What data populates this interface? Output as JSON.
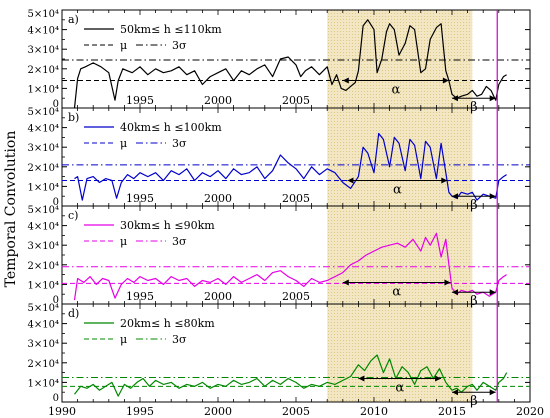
{
  "figure": {
    "ylabel": "Temporal Convolution",
    "x_ticks": [
      "1990",
      "1995",
      "2000",
      "2005",
      "2010",
      "2015",
      "2020"
    ],
    "y_ticks": [
      "0",
      "1×10⁴",
      "2×10⁴",
      "3×10⁴",
      "4×10⁴",
      "5×10⁴"
    ],
    "shaded_region": {
      "x_start": 2007.0,
      "x_end": 2016.3,
      "color": "#f3e7c3"
    },
    "vertical_line": {
      "x": 2017.9,
      "color": "#cc00cc"
    }
  },
  "chart_data": [
    {
      "type": "line",
      "panel_label": "a)",
      "legend": [
        {
          "label": "50km≤ h ≤110km",
          "style": "solid"
        },
        {
          "label": "μ",
          "style": "dashed"
        },
        {
          "label": "3σ",
          "style": "dashdot"
        }
      ],
      "color": "#000000",
      "xlim": [
        1990,
        2020
      ],
      "ylim": [
        0,
        50000
      ],
      "mu": 14000,
      "three_sigma": 24500,
      "series": [
        {
          "x": [
            1990.8,
            1991.0,
            1991.2,
            1991.5,
            1992.0,
            1992.5,
            1993.0,
            1993.4,
            1993.6,
            1993.9,
            1994.2,
            1994.5,
            1995.0,
            1995.5,
            1996.0,
            1996.5,
            1997.0,
            1997.5,
            1998.0,
            1998.5,
            1999.0,
            1999.5,
            2000.0,
            2000.5,
            2001.0,
            2001.5,
            2002.0,
            2002.5,
            2003.0,
            2003.5,
            2004.0,
            2004.5,
            2005.0,
            2005.3,
            2005.6,
            2006.0,
            2006.5,
            2007.0,
            2007.3,
            2007.6,
            2007.9,
            2008.2,
            2008.5,
            2008.8,
            2009.0,
            2009.3,
            2009.6,
            2010.0,
            2010.2,
            2010.5,
            2010.8,
            2011.0,
            2011.3,
            2011.6,
            2012.0,
            2012.3,
            2012.6,
            2013.0,
            2013.3,
            2013.6,
            2014.0,
            2014.3,
            2014.6,
            2014.8,
            2015.0,
            2015.3,
            2015.6,
            2016.0,
            2016.3,
            2016.6,
            2016.9,
            2017.2,
            2017.5,
            2017.8,
            2018.0,
            2018.3,
            2018.5
          ],
          "y": [
            0,
            15000,
            20000,
            21000,
            23000,
            21000,
            18000,
            4000,
            14000,
            20000,
            19000,
            18000,
            21000,
            17000,
            20000,
            18000,
            19000,
            21000,
            17000,
            19000,
            12000,
            16000,
            18000,
            20000,
            14000,
            19000,
            17000,
            20000,
            22000,
            16000,
            25000,
            26000,
            22000,
            16000,
            19000,
            21000,
            17000,
            21000,
            12000,
            17000,
            10000,
            9000,
            11000,
            13000,
            19000,
            42000,
            45000,
            40000,
            18000,
            25000,
            39000,
            43000,
            40000,
            27000,
            33000,
            42000,
            40000,
            18000,
            20000,
            35000,
            41000,
            43000,
            19000,
            14000,
            7000,
            5000,
            6000,
            7000,
            9000,
            6000,
            7000,
            11000,
            9000,
            4000,
            12000,
            16000,
            17000
          ]
        }
      ],
      "annotations": [
        {
          "label": "α",
          "x_start": 2008.0,
          "x_end": 2014.8,
          "y": 14000
        },
        {
          "label": "β",
          "x_start": 2015.0,
          "x_end": 2017.8,
          "y": 5000
        }
      ]
    },
    {
      "type": "line",
      "panel_label": "b)",
      "legend": [
        {
          "label": "40km≤ h ≤100km",
          "style": "solid"
        },
        {
          "label": "μ",
          "style": "dashed"
        },
        {
          "label": "3σ",
          "style": "dashdot"
        }
      ],
      "color": "#0000cc",
      "xlim": [
        1990,
        2020
      ],
      "ylim": [
        0,
        50000
      ],
      "mu": 13000,
      "three_sigma": 21000,
      "series": [
        {
          "x": [
            1990.8,
            1991.0,
            1991.3,
            1991.6,
            1992.0,
            1992.4,
            1992.8,
            1993.2,
            1993.5,
            1993.8,
            1994.2,
            1994.6,
            1995.0,
            1995.5,
            1996.0,
            1996.5,
            1997.0,
            1997.5,
            1998.0,
            1998.5,
            1999.0,
            1999.5,
            2000.0,
            2000.5,
            2001.0,
            2001.5,
            2002.0,
            2002.5,
            2003.0,
            2003.5,
            2004.0,
            2004.5,
            2005.0,
            2005.5,
            2006.0,
            2006.5,
            2007.0,
            2007.5,
            2008.0,
            2008.5,
            2009.0,
            2009.3,
            2009.6,
            2010.0,
            2010.3,
            2010.6,
            2011.0,
            2011.3,
            2011.6,
            2012.0,
            2012.3,
            2012.6,
            2013.0,
            2013.3,
            2013.6,
            2014.0,
            2014.3,
            2014.6,
            2014.8,
            2015.0,
            2015.3,
            2015.6,
            2016.0,
            2016.3,
            2016.6,
            2017.0,
            2017.4,
            2017.8,
            2018.0,
            2018.3,
            2018.5
          ],
          "y": [
            14000,
            15000,
            3000,
            14000,
            15000,
            12000,
            14000,
            13000,
            4000,
            12000,
            16000,
            14000,
            17000,
            15000,
            17000,
            13000,
            18000,
            16000,
            19000,
            13000,
            17000,
            15000,
            18000,
            14000,
            19000,
            16000,
            17000,
            20000,
            14000,
            18000,
            26000,
            22000,
            19000,
            14000,
            20000,
            16000,
            19000,
            17000,
            12000,
            9000,
            15000,
            30000,
            27000,
            17000,
            37000,
            34000,
            20000,
            35000,
            32000,
            18000,
            34000,
            31000,
            14000,
            33000,
            30000,
            14000,
            32000,
            17000,
            7000,
            5000,
            4000,
            7000,
            6000,
            7000,
            3000,
            6000,
            5000,
            4000,
            13000,
            15000,
            16000
          ]
        }
      ],
      "annotations": [
        {
          "label": "α",
          "x_start": 2008.3,
          "x_end": 2014.7,
          "y": 13000
        },
        {
          "label": "β",
          "x_start": 2015.0,
          "x_end": 2017.8,
          "y": 5000
        }
      ]
    },
    {
      "type": "line",
      "panel_label": "c)",
      "legend": [
        {
          "label": "30km≤ h ≤90km",
          "style": "solid"
        },
        {
          "label": "μ",
          "style": "dashed"
        },
        {
          "label": "3σ",
          "style": "dashdot"
        }
      ],
      "color": "#e600e6",
      "xlim": [
        1990,
        2020
      ],
      "ylim": [
        0,
        50000
      ],
      "mu": 10500,
      "three_sigma": 19000,
      "series": [
        {
          "x": [
            1990.8,
            1991.0,
            1991.4,
            1991.8,
            1992.2,
            1992.6,
            1993.0,
            1993.4,
            1993.8,
            1994.2,
            1994.6,
            1995.0,
            1995.5,
            1996.0,
            1996.5,
            1997.0,
            1997.5,
            1998.0,
            1998.5,
            1999.0,
            1999.5,
            2000.0,
            2000.5,
            2001.0,
            2001.5,
            2002.0,
            2002.5,
            2003.0,
            2003.5,
            2004.0,
            2004.5,
            2005.0,
            2005.5,
            2006.0,
            2006.5,
            2007.0,
            2007.5,
            2008.0,
            2008.5,
            2009.0,
            2009.5,
            2010.0,
            2010.5,
            2011.0,
            2011.5,
            2012.0,
            2012.5,
            2013.0,
            2013.3,
            2013.6,
            2014.0,
            2014.3,
            2014.6,
            2014.8,
            2015.0,
            2015.3,
            2015.6,
            2016.0,
            2016.3,
            2016.6,
            2017.0,
            2017.4,
            2017.8,
            2018.0,
            2018.3,
            2018.5
          ],
          "y": [
            2000,
            13000,
            11000,
            14000,
            10000,
            13000,
            12000,
            3000,
            10000,
            13000,
            11000,
            14000,
            12000,
            13000,
            10000,
            14000,
            12000,
            13000,
            9000,
            12000,
            11000,
            13000,
            10000,
            14000,
            11000,
            13000,
            15000,
            12000,
            16000,
            17000,
            14000,
            12000,
            9000,
            13000,
            11000,
            12000,
            14000,
            16000,
            20000,
            22000,
            25000,
            27000,
            29000,
            30000,
            31000,
            29000,
            33000,
            27000,
            34000,
            30000,
            36000,
            24000,
            33000,
            20000,
            8000,
            5000,
            7000,
            6000,
            7000,
            5000,
            6000,
            4000,
            6000,
            12000,
            14000,
            15000
          ]
        }
      ],
      "annotations": [
        {
          "label": "α",
          "x_start": 2008.0,
          "x_end": 2014.9,
          "y": 11000
        },
        {
          "label": "β",
          "x_start": 2015.0,
          "x_end": 2017.8,
          "y": 6000
        }
      ]
    },
    {
      "type": "line",
      "panel_label": "d)",
      "legend": [
        {
          "label": "20km≤ h ≤80km",
          "style": "solid"
        },
        {
          "label": "μ",
          "style": "dashed"
        },
        {
          "label": "3σ",
          "style": "dashdot"
        }
      ],
      "color": "#008800",
      "xlim": [
        1990,
        2020
      ],
      "ylim": [
        0,
        50000
      ],
      "mu": 8000,
      "three_sigma": 12500,
      "series": [
        {
          "x": [
            1990.8,
            1991.2,
            1991.6,
            1992.0,
            1992.4,
            1992.8,
            1993.2,
            1993.6,
            1994.0,
            1994.4,
            1994.8,
            1995.2,
            1995.6,
            1996.0,
            1996.5,
            1997.0,
            1997.5,
            1998.0,
            1998.5,
            1999.0,
            1999.5,
            2000.0,
            2000.5,
            2001.0,
            2001.5,
            2002.0,
            2002.5,
            2003.0,
            2003.5,
            2004.0,
            2004.5,
            2005.0,
            2005.5,
            2006.0,
            2006.5,
            2007.0,
            2007.5,
            2008.0,
            2008.5,
            2009.0,
            2009.4,
            2009.8,
            2010.2,
            2010.6,
            2011.0,
            2011.4,
            2011.8,
            2012.2,
            2012.6,
            2013.0,
            2013.4,
            2013.8,
            2014.2,
            2014.6,
            2015.0,
            2015.3,
            2015.6,
            2016.0,
            2016.3,
            2016.6,
            2017.0,
            2017.4,
            2017.8,
            2018.0,
            2018.3,
            2018.5
          ],
          "y": [
            4000,
            8000,
            7000,
            9000,
            6000,
            8000,
            10000,
            3000,
            9000,
            7000,
            10000,
            12000,
            8000,
            11000,
            9000,
            10000,
            7000,
            9000,
            8000,
            10000,
            7000,
            9000,
            8000,
            11000,
            9000,
            10000,
            12000,
            8000,
            11000,
            9000,
            12000,
            10000,
            7000,
            9000,
            8000,
            10000,
            9000,
            11000,
            13000,
            19000,
            16000,
            21000,
            24000,
            15000,
            22000,
            12000,
            18000,
            15000,
            9000,
            16000,
            18000,
            12000,
            17000,
            10000,
            6000,
            7000,
            5000,
            8000,
            9000,
            6000,
            10000,
            8000,
            6000,
            10000,
            12000,
            15000
          ]
        }
      ],
      "annotations": [
        {
          "label": "α",
          "x_start": 2009.0,
          "x_end": 2014.3,
          "y": 12000
        },
        {
          "label": "β",
          "x_start": 2015.0,
          "x_end": 2017.8,
          "y": 5000
        }
      ]
    }
  ]
}
